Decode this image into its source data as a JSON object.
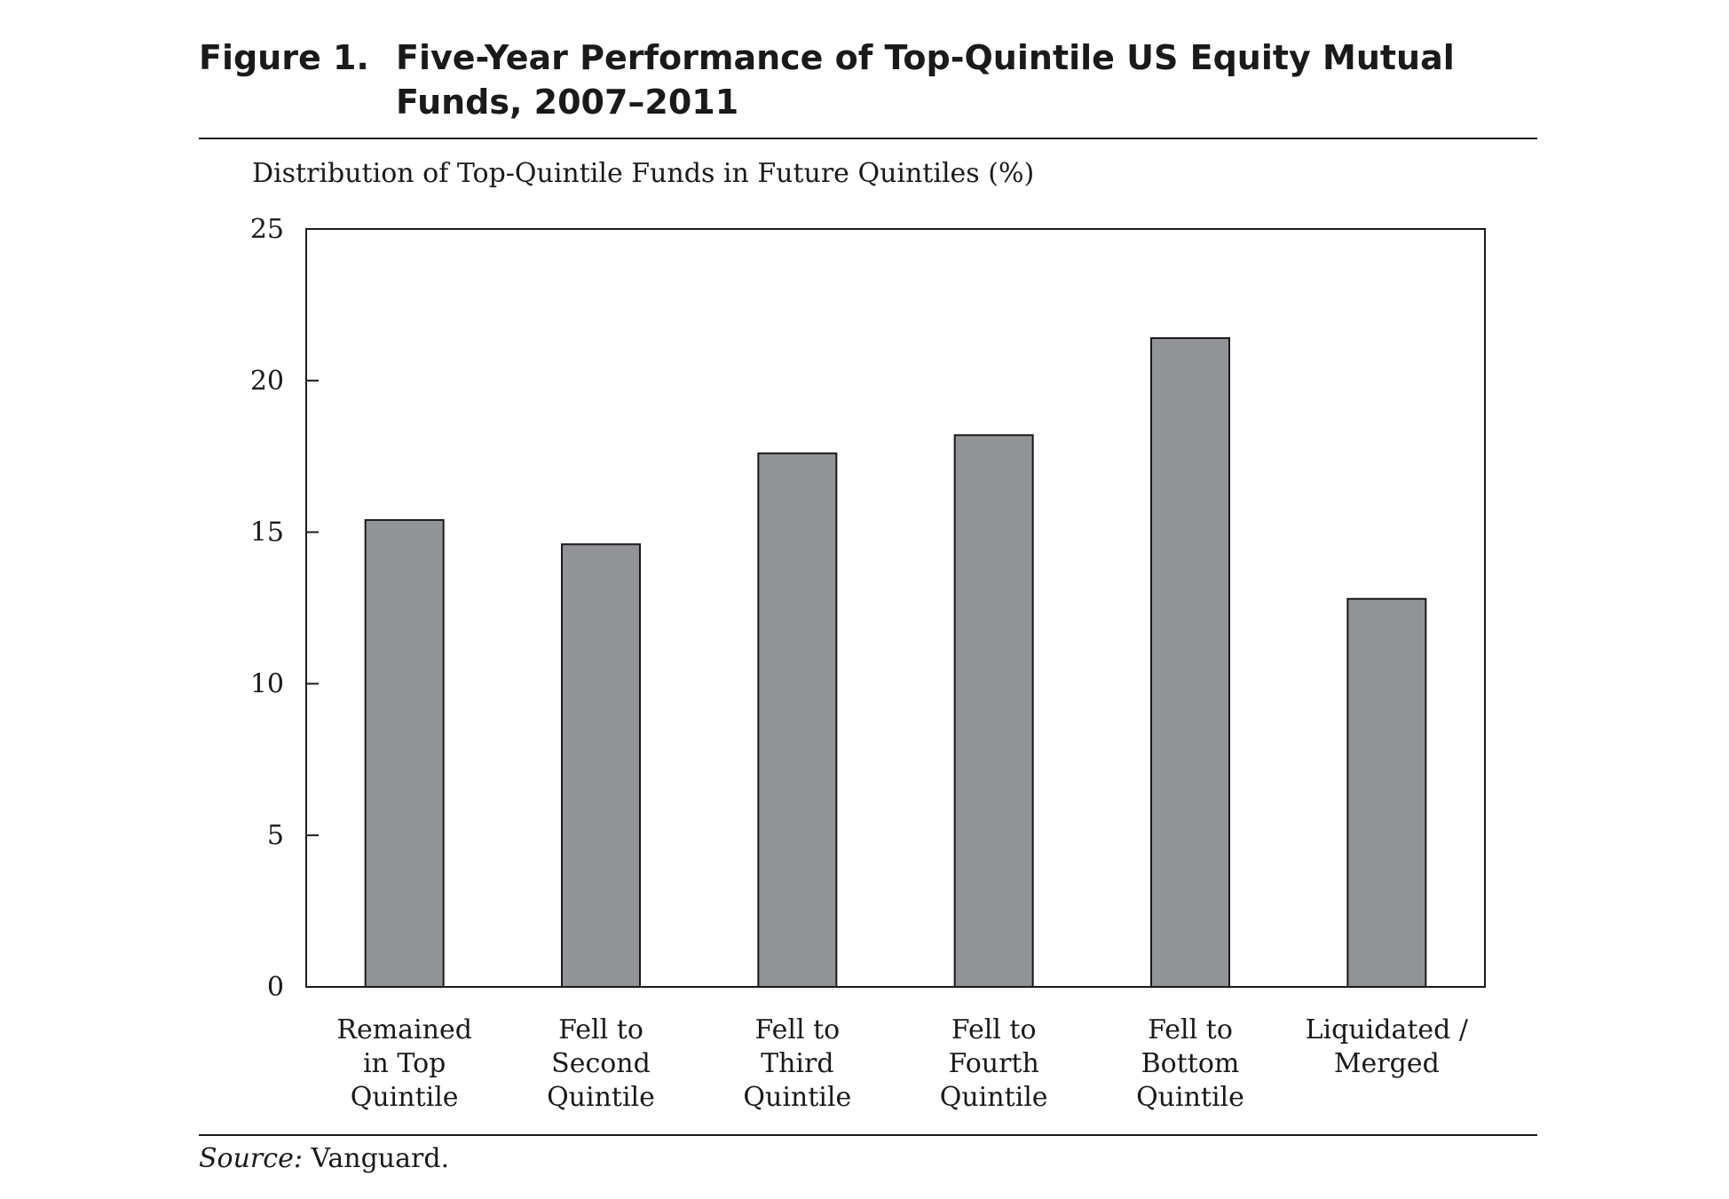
{
  "figure": {
    "label": "Figure 1.",
    "title": "Five-Year Performance of Top-Quintile US Equity Mutual Funds, 2007–2011"
  },
  "source": {
    "label": "Source:",
    "text": " Vanguard."
  },
  "colors": {
    "bar_fill": "#929396",
    "bar_stroke": "#1a1a1a",
    "text": "#1a1a1a"
  },
  "chart_data": {
    "type": "bar",
    "title": "Five-Year Performance of Top-Quintile US Equity Mutual Funds, 2007–2011",
    "ylabel": "Distribution of Top-Quintile Funds in Future Quintiles (%)",
    "xlabel": "",
    "categories": [
      [
        "Remained",
        "in Top",
        "Quintile"
      ],
      [
        "Fell to",
        "Second",
        "Quintile"
      ],
      [
        "Fell to",
        "Third",
        "Quintile"
      ],
      [
        "Fell to",
        "Fourth",
        "Quintile"
      ],
      [
        "Fell to",
        "Bottom",
        "Quintile"
      ],
      [
        "Liquidated /",
        "Merged"
      ]
    ],
    "values": [
      15.4,
      14.6,
      17.6,
      18.2,
      21.4,
      12.8
    ],
    "ylim": [
      0,
      25
    ],
    "yticks": [
      "0",
      "5",
      "10",
      "15",
      "20",
      "25"
    ],
    "grid": false,
    "legend": "none"
  }
}
